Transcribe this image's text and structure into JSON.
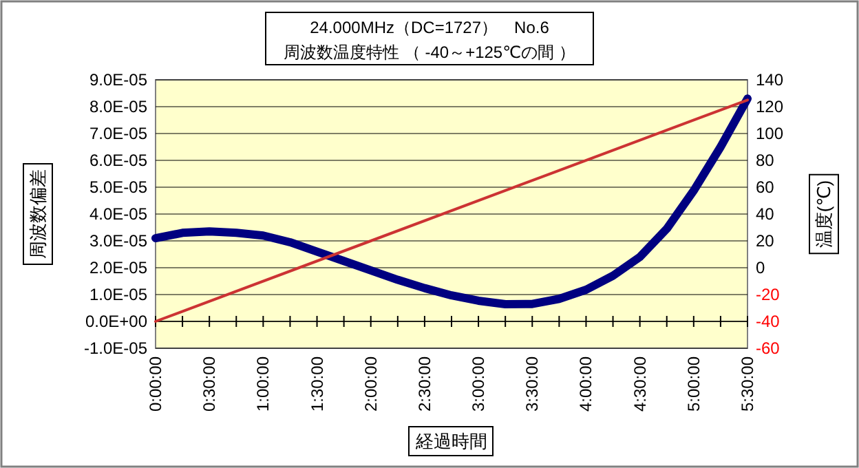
{
  "chart_data": {
    "type": "line",
    "title": "24.000MHz（DC=1727）　No.6",
    "subtitle": "周波数温度特性 （ -40～+125℃の間 ）",
    "xlabel": "経過時間",
    "ylabel": "周波数偏差",
    "y2label": "温度(℃)",
    "xlim": [
      0,
      5.5
    ],
    "xticks": [
      {
        "value": 0,
        "label": "0:00:00"
      },
      {
        "value": 0.5,
        "label": "0:30:00"
      },
      {
        "value": 1,
        "label": "1:00:00"
      },
      {
        "value": 1.5,
        "label": "1:30:00"
      },
      {
        "value": 2,
        "label": "2:00:00"
      },
      {
        "value": 2.5,
        "label": "2:30:00"
      },
      {
        "value": 3,
        "label": "3:00:00"
      },
      {
        "value": 3.5,
        "label": "3:30:00"
      },
      {
        "value": 4,
        "label": "4:00:00"
      },
      {
        "value": 4.5,
        "label": "4:30:00"
      },
      {
        "value": 5,
        "label": "5:00:00"
      },
      {
        "value": 5.5,
        "label": "5:30:00"
      }
    ],
    "ylim": [
      -1e-05,
      9e-05
    ],
    "yticks": [
      {
        "value": -1e-05,
        "label": "-1.0E-05"
      },
      {
        "value": 0,
        "label": "0.0E+00"
      },
      {
        "value": 1e-05,
        "label": "1.0E-05"
      },
      {
        "value": 2e-05,
        "label": "2.0E-05"
      },
      {
        "value": 3e-05,
        "label": "3.0E-05"
      },
      {
        "value": 4e-05,
        "label": "4.0E-05"
      },
      {
        "value": 5e-05,
        "label": "5.0E-05"
      },
      {
        "value": 6e-05,
        "label": "6.0E-05"
      },
      {
        "value": 7e-05,
        "label": "7.0E-05"
      },
      {
        "value": 8e-05,
        "label": "8.0E-05"
      },
      {
        "value": 9e-05,
        "label": "9.0E-05"
      }
    ],
    "y2lim": [
      -60,
      140
    ],
    "y2ticks": [
      -60,
      -40,
      -20,
      0,
      20,
      40,
      60,
      80,
      100,
      120,
      140
    ],
    "grid": "y",
    "marker": "none",
    "line_style": "solid",
    "series": [
      {
        "color": "#000080",
        "x": [
          0,
          0.25,
          0.5,
          0.75,
          1,
          1.25,
          1.5,
          1.75,
          2,
          2.25,
          2.5,
          2.75,
          3,
          3.25,
          3.5,
          3.75,
          4,
          4.25,
          4.5,
          4.75,
          5,
          5.25,
          5.5
        ],
        "values": [
          3.1e-05,
          3.3e-05,
          3.35e-05,
          3.3e-05,
          3.2e-05,
          2.95e-05,
          2.6e-05,
          2.25e-05,
          1.9e-05,
          1.55e-05,
          1.24e-05,
          9.7e-06,
          7.7e-06,
          6.4e-06,
          6.5e-06,
          8.4e-06,
          1.18e-05,
          1.7e-05,
          2.4e-05,
          3.45e-05,
          4.87e-05,
          6.5e-05,
          8.3e-05
        ]
      },
      {
        "color": "#cc3333",
        "axis": "y2",
        "x": [
          0,
          5.5
        ],
        "values": [
          -40,
          125
        ]
      }
    ]
  }
}
